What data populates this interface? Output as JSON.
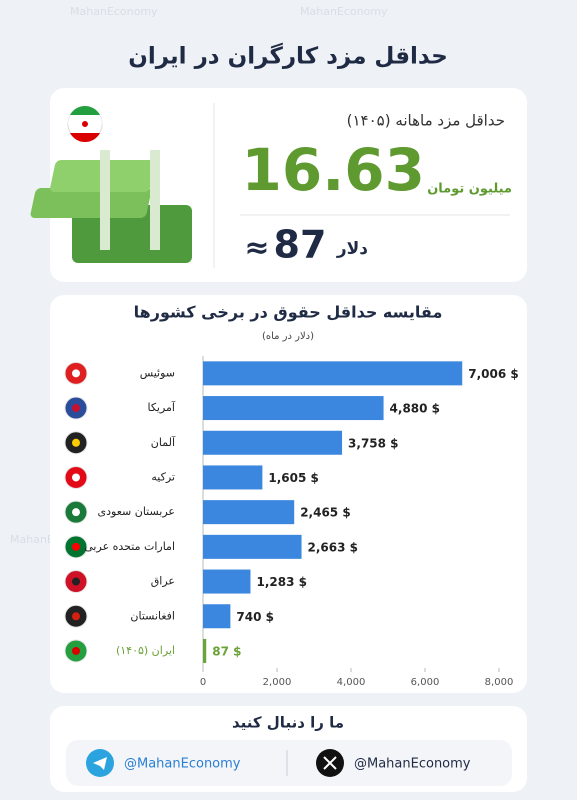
{
  "header": {
    "title": "حداقل مزد کارگران در ایران"
  },
  "watermark": "MahanEconomy",
  "summary": {
    "label": "حداقل مزد ماهانه (۱۴۰۵)",
    "amount": "16.63",
    "unit": "میلیون تومان",
    "approx": "≈",
    "usd": "87",
    "usd_unit": "دلار"
  },
  "chart_data": {
    "type": "bar",
    "orientation": "horizontal",
    "title": "مقایسه حداقل حقوق در برخی کشورها",
    "subtitle": "(دلار در ماه)",
    "categories": [
      "سوئیس",
      "آمریکا",
      "آلمان",
      "ترکیه",
      "عربستان سعودی",
      "امارات متحده عربی",
      "عراق",
      "افغانستان",
      "ایران (۱۴۰۵)"
    ],
    "values": [
      7006,
      4880,
      3758,
      1605,
      2465,
      2663,
      1283,
      740,
      87
    ],
    "value_labels": [
      "7,006 $",
      "4,880 $",
      "3,758 $",
      "1,605 $",
      "2,465 $",
      "2,663 $",
      "1,283 $",
      "740 $",
      "87 $"
    ],
    "colors": [
      "#3b86df",
      "#3b86df",
      "#3b86df",
      "#3b86df",
      "#3b86df",
      "#3b86df",
      "#3b86df",
      "#3b86df",
      "#6aa336"
    ],
    "xlim": [
      0,
      8000
    ],
    "xticks": [
      0,
      {
        "value": 2000,
        "label": "2,000"
      },
      {
        "value": 4000,
        "label": "4,000"
      },
      {
        "value": 6000,
        "label": "6,000"
      },
      {
        "value": 8000,
        "label": "8,000"
      }
    ]
  },
  "footer": {
    "title": "ما را دنبال کنید",
    "telegram": "@MahanEconomy",
    "x": "@MahanEconomy"
  }
}
